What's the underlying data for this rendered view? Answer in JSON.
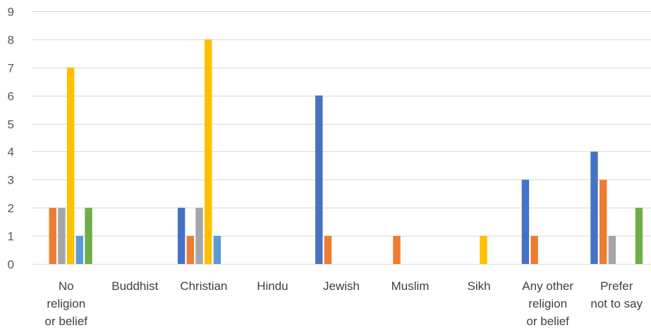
{
  "chart_data": {
    "type": "bar",
    "title": "",
    "xlabel": "",
    "ylabel": "",
    "ylim": [
      0,
      9
    ],
    "yticks": [
      0,
      1,
      2,
      3,
      4,
      5,
      6,
      7,
      8,
      9
    ],
    "grid": true,
    "legend": "none",
    "categories": [
      [
        "No",
        "religion",
        "or belief"
      ],
      [
        "Buddhist"
      ],
      [
        "Christian"
      ],
      [
        "Hindu"
      ],
      [
        "Jewish"
      ],
      [
        "Muslim"
      ],
      [
        "Sikh"
      ],
      [
        "Any other",
        "religion",
        "or belief"
      ],
      [
        "Prefer",
        "not to say"
      ]
    ],
    "series": [
      {
        "color": "#4472c4",
        "values": [
          0,
          0,
          2,
          0,
          6,
          0,
          0,
          3,
          4
        ]
      },
      {
        "color": "#ed7d31",
        "values": [
          2,
          0,
          1,
          0,
          1,
          1,
          0,
          1,
          3
        ]
      },
      {
        "color": "#a5a5a5",
        "values": [
          2,
          0,
          2,
          0,
          0,
          0,
          0,
          0,
          1
        ]
      },
      {
        "color": "#ffc000",
        "values": [
          7,
          0,
          8,
          0,
          0,
          0,
          1,
          0,
          0
        ]
      },
      {
        "color": "#5b9bd5",
        "values": [
          1,
          0,
          1,
          0,
          0,
          0,
          0,
          0,
          0
        ]
      },
      {
        "color": "#70ad47",
        "values": [
          2,
          0,
          0,
          0,
          0,
          0,
          0,
          0,
          2
        ]
      }
    ]
  }
}
